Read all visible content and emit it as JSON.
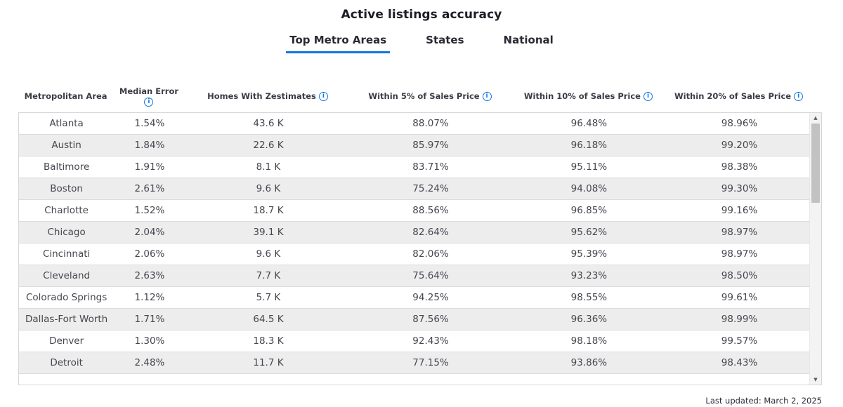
{
  "title": "Active listings accuracy",
  "tabs": [
    {
      "label": "Top Metro Areas",
      "active": true
    },
    {
      "label": "States",
      "active": false
    },
    {
      "label": "National",
      "active": false
    }
  ],
  "table": {
    "columns": [
      {
        "label": "Metropolitan Area",
        "info": false
      },
      {
        "label": "Median Error",
        "info": true
      },
      {
        "label": "Homes With Zestimates",
        "info": true
      },
      {
        "label": "Within 5% of Sales Price",
        "info": true
      },
      {
        "label": "Within 10% of Sales Price",
        "info": true
      },
      {
        "label": "Within 20% of Sales Price",
        "info": true
      }
    ],
    "row_keys": [
      "metro",
      "median_error",
      "homes",
      "within_5",
      "within_10",
      "within_20"
    ],
    "rows": [
      {
        "metro": "Atlanta",
        "median_error": "1.54%",
        "homes": "43.6 K",
        "within_5": "88.07%",
        "within_10": "96.48%",
        "within_20": "98.96%"
      },
      {
        "metro": "Austin",
        "median_error": "1.84%",
        "homes": "22.6 K",
        "within_5": "85.97%",
        "within_10": "96.18%",
        "within_20": "99.20%"
      },
      {
        "metro": "Baltimore",
        "median_error": "1.91%",
        "homes": "8.1 K",
        "within_5": "83.71%",
        "within_10": "95.11%",
        "within_20": "98.38%"
      },
      {
        "metro": "Boston",
        "median_error": "2.61%",
        "homes": "9.6 K",
        "within_5": "75.24%",
        "within_10": "94.08%",
        "within_20": "99.30%"
      },
      {
        "metro": "Charlotte",
        "median_error": "1.52%",
        "homes": "18.7 K",
        "within_5": "88.56%",
        "within_10": "96.85%",
        "within_20": "99.16%"
      },
      {
        "metro": "Chicago",
        "median_error": "2.04%",
        "homes": "39.1 K",
        "within_5": "82.64%",
        "within_10": "95.62%",
        "within_20": "98.97%"
      },
      {
        "metro": "Cincinnati",
        "median_error": "2.06%",
        "homes": "9.6 K",
        "within_5": "82.06%",
        "within_10": "95.39%",
        "within_20": "98.97%"
      },
      {
        "metro": "Cleveland",
        "median_error": "2.63%",
        "homes": "7.7 K",
        "within_5": "75.64%",
        "within_10": "93.23%",
        "within_20": "98.50%"
      },
      {
        "metro": "Colorado Springs",
        "median_error": "1.12%",
        "homes": "5.7 K",
        "within_5": "94.25%",
        "within_10": "98.55%",
        "within_20": "99.61%"
      },
      {
        "metro": "Dallas-Fort Worth",
        "median_error": "1.71%",
        "homes": "64.5 K",
        "within_5": "87.56%",
        "within_10": "96.36%",
        "within_20": "98.99%"
      },
      {
        "metro": "Denver",
        "median_error": "1.30%",
        "homes": "18.3 K",
        "within_5": "92.43%",
        "within_10": "98.18%",
        "within_20": "99.57%"
      },
      {
        "metro": "Detroit",
        "median_error": "2.48%",
        "homes": "11.7 K",
        "within_5": "77.15%",
        "within_10": "93.86%",
        "within_20": "98.43%"
      }
    ]
  },
  "icons": {
    "info": "i",
    "scroll_up": "▲",
    "scroll_down": "▼"
  },
  "footer": {
    "last_updated": "Last updated: March 2, 2025"
  },
  "colors": {
    "accent_blue": "#1277e1",
    "stripe_gray": "#ededed",
    "text_dark": "#1c1c25"
  }
}
